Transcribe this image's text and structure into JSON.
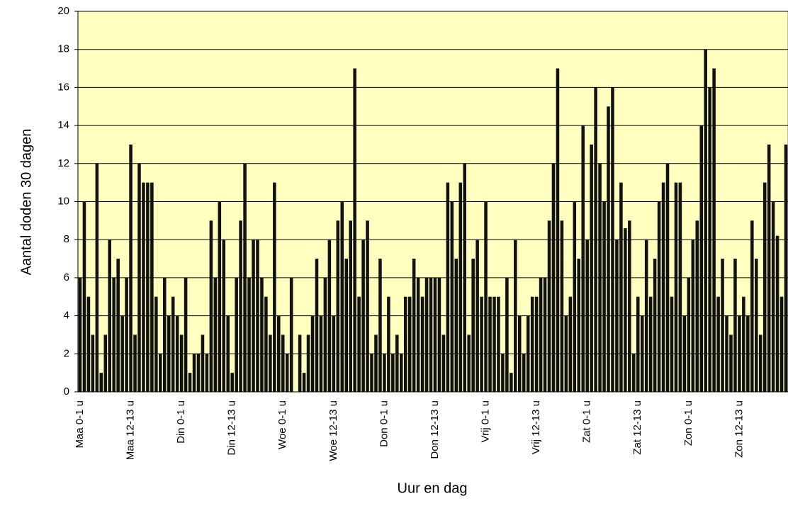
{
  "chart_data": {
    "type": "bar",
    "xlabel": "Uur en dag",
    "ylabel": "Aantal doden 30 dagen",
    "categories": [
      "Maa 0-1 u",
      null,
      null,
      null,
      null,
      null,
      null,
      null,
      null,
      null,
      null,
      null,
      "Maa 12-13 u",
      null,
      null,
      null,
      null,
      null,
      null,
      null,
      null,
      null,
      null,
      null,
      "Din 0-1 u",
      null,
      null,
      null,
      null,
      null,
      null,
      null,
      null,
      null,
      null,
      null,
      "Din 12-13 u",
      null,
      null,
      null,
      null,
      null,
      null,
      null,
      null,
      null,
      null,
      null,
      "Woe 0-1 u",
      null,
      null,
      null,
      null,
      null,
      null,
      null,
      null,
      null,
      null,
      null,
      "Woe 12-13 u",
      null,
      null,
      null,
      null,
      null,
      null,
      null,
      null,
      null,
      null,
      null,
      "Don 0-1 u",
      null,
      null,
      null,
      null,
      null,
      null,
      null,
      null,
      null,
      null,
      null,
      "Don 12-13 u",
      null,
      null,
      null,
      null,
      null,
      null,
      null,
      null,
      null,
      null,
      null,
      "Vrij 0-1 u",
      null,
      null,
      null,
      null,
      null,
      null,
      null,
      null,
      null,
      null,
      null,
      "Vrij 12-13 u",
      null,
      null,
      null,
      null,
      null,
      null,
      null,
      null,
      null,
      null,
      null,
      "Zat 0-1 u",
      null,
      null,
      null,
      null,
      null,
      null,
      null,
      null,
      null,
      null,
      null,
      "Zat 12-13 u",
      null,
      null,
      null,
      null,
      null,
      null,
      null,
      null,
      null,
      null,
      null,
      "Zon 0-1 u",
      null,
      null,
      null,
      null,
      null,
      null,
      null,
      null,
      null,
      null,
      null,
      "Zon 12-13 u",
      null,
      null,
      null,
      null,
      null,
      null,
      null,
      null,
      null,
      null,
      null
    ],
    "values": [
      6,
      10,
      5,
      3,
      12,
      1,
      3,
      8,
      6,
      7,
      4,
      6,
      13,
      3,
      12,
      11,
      11,
      11,
      5,
      2,
      6,
      4,
      5,
      4,
      3,
      6,
      1,
      2,
      2,
      3,
      2,
      9,
      6,
      10,
      8,
      4,
      1,
      6,
      9,
      12,
      6,
      8,
      8,
      6,
      5,
      3,
      11,
      4,
      3,
      2,
      6,
      0,
      3,
      1,
      3,
      4,
      7,
      4,
      6,
      8,
      4,
      9,
      10,
      7,
      9,
      17,
      5,
      8,
      9,
      2,
      3,
      7,
      2,
      5,
      2,
      3,
      2,
      5,
      5,
      7,
      6,
      5,
      6,
      6,
      6,
      6,
      3,
      11,
      10,
      7,
      11,
      12,
      3,
      7,
      8,
      5,
      10,
      5,
      5,
      5,
      2,
      6,
      1,
      8,
      4,
      2,
      4,
      5,
      5,
      6,
      6,
      9,
      12,
      17,
      9,
      4,
      5,
      10,
      7,
      14,
      8,
      13,
      16,
      12,
      10,
      15,
      16,
      8,
      11,
      8.6,
      9,
      2,
      5,
      4,
      8,
      5,
      7,
      10,
      11,
      12,
      5,
      11,
      11,
      4,
      6,
      8,
      9,
      14,
      18,
      16,
      17,
      5,
      7,
      4,
      3,
      7,
      4,
      5,
      4,
      9,
      7,
      3,
      11,
      13,
      10,
      8.2,
      5,
      13
    ],
    "color": "#111111",
    "background": "#ffffc0",
    "ylim": [
      0,
      20
    ],
    "yticks": [
      0,
      2,
      4,
      6,
      8,
      10,
      12,
      14,
      16,
      18,
      20
    ],
    "grid": true
  }
}
